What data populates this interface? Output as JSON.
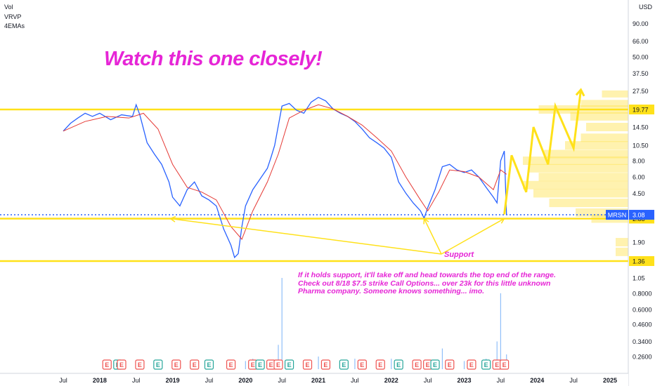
{
  "indicators": [
    "Vol",
    "VRVP",
    "4EMAs"
  ],
  "headline": "Watch this one closely!",
  "note": "If it holds support, it'll take off and head towards the top end of the range. Check out 8/18 $7.5 strike Call Options... over 23k for this little unknown Pharma company. Someone knows something... imo.",
  "support_label": "Support",
  "currency": "USD",
  "colors": {
    "accent": "#e625d6",
    "level": "#ffe11a",
    "price": "#2962ff",
    "ema": "#e53935",
    "volume": "#90bff9"
  },
  "ticker": {
    "symbol": "MRSN",
    "price": "3.08"
  },
  "chart_data": {
    "type": "line",
    "y_scale": "log",
    "y_ticks": [
      90.0,
      66.0,
      50.0,
      37.5,
      27.5,
      19.77,
      14.5,
      10.5,
      8.0,
      6.0,
      4.5,
      3.2,
      2.88,
      1.9,
      1.36
    ],
    "x_ticks": [
      "Jul",
      "2018",
      "Jul",
      "2019",
      "Jul",
      "2020",
      "Jul",
      "2021",
      "Jul",
      "2022",
      "Jul",
      "2023",
      "Jul",
      "2024",
      "Jul",
      "2025"
    ],
    "x_tick_dates": [
      2017.5,
      2018.0,
      2018.5,
      2019.0,
      2019.5,
      2020.0,
      2020.5,
      2021.0,
      2021.5,
      2022.0,
      2022.5,
      2023.0,
      2023.5,
      2024.0,
      2024.5,
      2025.0
    ],
    "price_series": {
      "x": [
        2017.5,
        2017.6,
        2017.7,
        2017.8,
        2017.9,
        2018.0,
        2018.15,
        2018.3,
        2018.45,
        2018.5,
        2018.55,
        2018.65,
        2018.75,
        2018.85,
        2018.95,
        2019.0,
        2019.1,
        2019.2,
        2019.3,
        2019.4,
        2019.5,
        2019.6,
        2019.7,
        2019.8,
        2019.85,
        2019.9,
        2019.95,
        2020.0,
        2020.1,
        2020.2,
        2020.3,
        2020.35,
        2020.4,
        2020.5,
        2020.6,
        2020.7,
        2020.8,
        2020.9,
        2021.0,
        2021.1,
        2021.2,
        2021.3,
        2021.4,
        2021.5,
        2021.6,
        2021.7,
        2021.8,
        2021.9,
        2022.0,
        2022.1,
        2022.2,
        2022.3,
        2022.4,
        2022.45,
        2022.5,
        2022.6,
        2022.7,
        2022.8,
        2022.9,
        2023.0,
        2023.1,
        2023.2,
        2023.3,
        2023.4,
        2023.45,
        2023.5,
        2023.55,
        2023.58
      ],
      "y": [
        13.5,
        15.5,
        17.0,
        18.5,
        17.5,
        18.5,
        16.5,
        18.0,
        17.5,
        21.5,
        18.0,
        11.0,
        9.0,
        7.5,
        5.5,
        4.2,
        3.6,
        4.8,
        5.5,
        4.3,
        4.0,
        3.6,
        2.4,
        1.8,
        1.45,
        1.55,
        2.5,
        3.6,
        4.8,
        5.8,
        7.0,
        8.5,
        10.5,
        21.0,
        22.0,
        19.5,
        18.5,
        22.5,
        24.5,
        23.0,
        20.0,
        18.5,
        17.5,
        16.0,
        14.0,
        12.0,
        11.0,
        10.0,
        8.5,
        5.5,
        4.5,
        3.8,
        3.3,
        2.9,
        3.5,
        4.8,
        7.2,
        7.5,
        6.8,
        6.5,
        6.8,
        6.0,
        5.0,
        4.2,
        3.8,
        8.0,
        9.5,
        3.08
      ]
    },
    "ema_series": {
      "x": [
        2017.5,
        2017.8,
        2018.1,
        2018.4,
        2018.6,
        2018.8,
        2019.0,
        2019.2,
        2019.4,
        2019.6,
        2019.8,
        2019.95,
        2020.1,
        2020.3,
        2020.45,
        2020.6,
        2020.8,
        2021.0,
        2021.2,
        2021.4,
        2021.6,
        2021.8,
        2022.0,
        2022.2,
        2022.4,
        2022.5,
        2022.65,
        2022.8,
        2023.0,
        2023.2,
        2023.4,
        2023.5,
        2023.58
      ],
      "y": [
        13.5,
        16.0,
        17.5,
        17.0,
        18.5,
        14.0,
        7.5,
        5.0,
        4.6,
        4.0,
        2.5,
        2.0,
        3.3,
        5.5,
        9.0,
        17.0,
        19.5,
        21.5,
        20.0,
        17.5,
        15.0,
        12.0,
        9.5,
        6.0,
        4.0,
        3.3,
        4.6,
        6.8,
        6.6,
        6.0,
        4.8,
        6.8,
        6.3
      ]
    },
    "levels": [
      19.77,
      2.88,
      1.36
    ],
    "current_price": 3.08,
    "projection": {
      "x": [
        2023.55,
        2023.65,
        2023.85,
        2023.95,
        2024.15,
        2024.25,
        2024.5,
        2024.6
      ],
      "y": [
        3.1,
        8.8,
        4.6,
        14.5,
        7.5,
        21.0,
        10.0,
        28.0
      ]
    },
    "volume_series": {
      "x": [
        2018.5,
        2019.0,
        2019.5,
        2020.0,
        2020.1,
        2020.45,
        2020.5,
        2021.0,
        2021.5,
        2022.0,
        2022.5,
        2022.7,
        2023.0,
        2023.3,
        2023.45,
        2023.5,
        2023.58
      ],
      "y": [
        0.24,
        0.23,
        0.23,
        0.24,
        0.25,
        0.32,
        1.05,
        0.26,
        0.25,
        0.25,
        0.24,
        0.3,
        0.24,
        0.25,
        0.34,
        0.8,
        0.27
      ]
    },
    "volume_ticks": [
      1.05,
      0.8,
      0.6,
      0.46,
      0.34,
      0.26
    ],
    "earnings_markers": [
      2018.1,
      2018.25,
      2018.3,
      2018.55,
      2018.8,
      2019.05,
      2019.3,
      2019.5,
      2019.8,
      2020.1,
      2020.2,
      2020.35,
      2020.45,
      2020.6,
      2020.85,
      2021.1,
      2021.35,
      2021.6,
      2021.85,
      2022.1,
      2022.35,
      2022.5,
      2022.6,
      2022.8,
      2023.1,
      2023.3,
      2023.45,
      2023.55
    ],
    "earnings_types": [
      "E",
      "E",
      "E",
      "E",
      "E",
      "E",
      "E",
      "E",
      "E",
      "E",
      "E",
      "E",
      "E",
      "E",
      "E",
      "E",
      "E",
      "E",
      "E",
      "E",
      "E",
      "E",
      "E",
      "E",
      "E",
      "E",
      "E",
      "E"
    ],
    "volume_profile": [
      {
        "price": 26.0,
        "width": 0.25
      },
      {
        "price": 22.0,
        "width": 0.45
      },
      {
        "price": 19.77,
        "width": 0.85
      },
      {
        "price": 17.5,
        "width": 0.55
      },
      {
        "price": 14.5,
        "width": 0.4
      },
      {
        "price": 12.0,
        "width": 0.45
      },
      {
        "price": 10.5,
        "width": 0.6
      },
      {
        "price": 9.0,
        "width": 0.8
      },
      {
        "price": 8.0,
        "width": 1.0
      },
      {
        "price": 7.0,
        "width": 0.95
      },
      {
        "price": 6.0,
        "width": 0.85
      },
      {
        "price": 5.2,
        "width": 1.0
      },
      {
        "price": 4.5,
        "width": 0.9
      },
      {
        "price": 3.8,
        "width": 0.75
      },
      {
        "price": 3.2,
        "width": 0.5
      },
      {
        "price": 2.88,
        "width": 0.35
      },
      {
        "price": 1.9,
        "width": 0.12
      },
      {
        "price": 1.6,
        "width": 0.12
      }
    ]
  }
}
